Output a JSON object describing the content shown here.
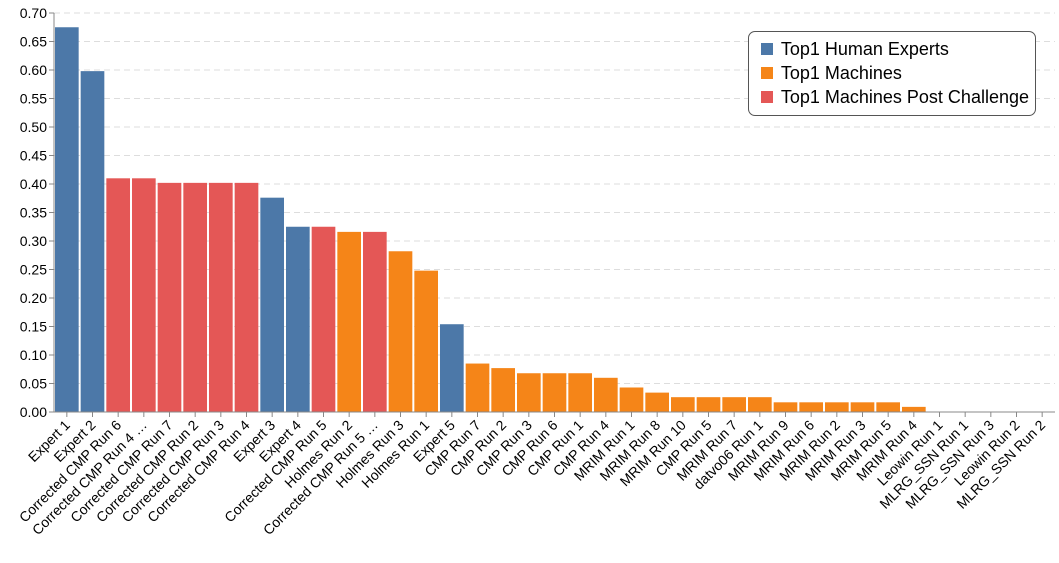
{
  "chart_data": {
    "type": "bar",
    "title": "",
    "xlabel": "",
    "ylabel": "",
    "ylim": [
      0,
      0.7
    ],
    "yticks": [
      "0.00",
      "0.05",
      "0.10",
      "0.15",
      "0.20",
      "0.25",
      "0.30",
      "0.35",
      "0.40",
      "0.45",
      "0.50",
      "0.55",
      "0.60",
      "0.65",
      "0.70"
    ],
    "grid": "horizontal dashed",
    "legend_position": "top-right",
    "legend": [
      {
        "label": "Top1 Human Experts",
        "color": "#4c78a8"
      },
      {
        "label": "Top1 Machines",
        "color": "#f58518"
      },
      {
        "label": "Top1 Machines Post Challenge",
        "color": "#e45756"
      }
    ],
    "categories": [
      "Expert 1",
      "Expert 2",
      "Corrected CMP Run 6",
      "Corrected CMP Run 4 …",
      "Corrected CMP Run 7",
      "Corrected CMP Run 2",
      "Corrected CMP Run 3",
      "Corrected CMP Run 4",
      "Expert 3",
      "Expert 4",
      "Corrected CMP Run 5",
      "Holmes Run 2",
      "Corrected CMP Run 5 …",
      "Holmes Run 3",
      "Holmes Run 1",
      "Expert 5",
      "CMP Run 7",
      "CMP Run 2",
      "CMP Run 3",
      "CMP Run 6",
      "CMP Run 1",
      "CMP Run 4",
      "MRIM Run 1",
      "MRIM Run 8",
      "MRIM Run 10",
      "CMP Run 5",
      "MRIM Run 7",
      "datvo06 Run 1",
      "MRIM Run 9",
      "MRIM Run 6",
      "MRIM Run 2",
      "MRIM Run 3",
      "MRIM Run 5",
      "MRIM Run 4",
      "Leowin Run 1",
      "MLRG_SSN Run 1",
      "MLRG_SSN Run 3",
      "Leowin Run 2",
      "MLRG_SSN Run 2"
    ],
    "values": [
      0.675,
      0.598,
      0.41,
      0.41,
      0.402,
      0.402,
      0.402,
      0.402,
      0.376,
      0.325,
      0.325,
      0.316,
      0.316,
      0.282,
      0.248,
      0.154,
      0.085,
      0.077,
      0.068,
      0.068,
      0.068,
      0.06,
      0.043,
      0.034,
      0.026,
      0.026,
      0.026,
      0.026,
      0.017,
      0.017,
      0.017,
      0.017,
      0.017,
      0.009,
      0,
      0,
      0,
      0,
      0
    ],
    "groups": [
      0,
      0,
      2,
      2,
      2,
      2,
      2,
      2,
      0,
      0,
      2,
      1,
      2,
      1,
      1,
      0,
      1,
      1,
      1,
      1,
      1,
      1,
      1,
      1,
      1,
      1,
      1,
      1,
      1,
      1,
      1,
      1,
      1,
      1,
      1,
      1,
      1,
      1,
      1
    ]
  }
}
